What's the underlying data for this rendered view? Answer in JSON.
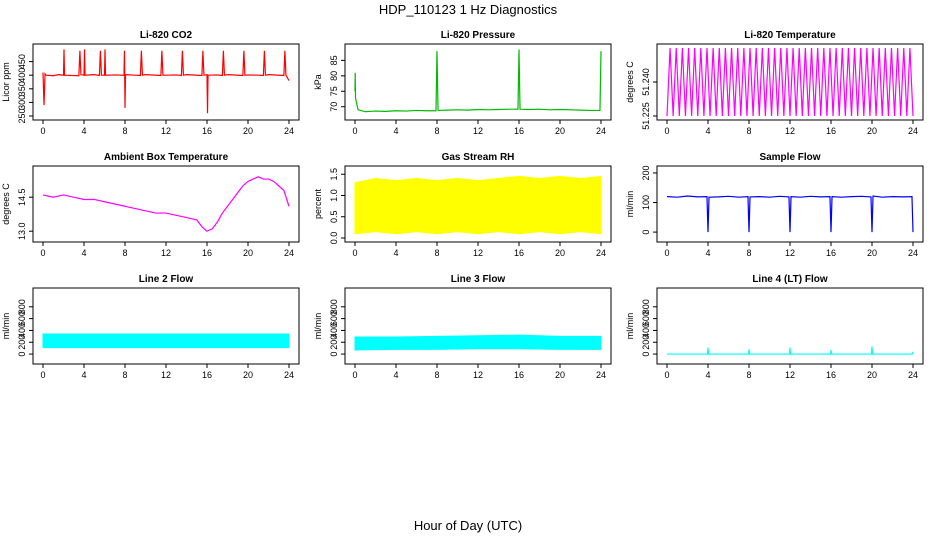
{
  "page": {
    "title": "HDP_110123  1 Hz Diagnostics",
    "x_caption": "Hour of Day (UTC)"
  },
  "chart_data": [
    {
      "type": "line",
      "title": "Li-820 CO2",
      "ylabel": "Licor ppm",
      "color": "#ff0000",
      "xlim": [
        0,
        24
      ],
      "ylim": [
        250,
        500
      ],
      "xticks": [
        "0",
        "4",
        "8",
        "12",
        "16",
        "20",
        "24"
      ],
      "yticks": [
        "250",
        "300",
        "350",
        "400",
        "450"
      ],
      "series": [
        {
          "x": [
            0,
            0.1,
            0.2,
            0.3,
            1.0,
            1.5,
            2.0,
            2.05,
            2.1,
            3.5,
            3.6,
            3.7,
            4.0,
            4.05,
            4.1,
            5.0,
            5.5,
            5.6,
            5.7,
            6.0,
            6.05,
            6.1,
            7.0,
            7.9,
            7.95,
            8.0,
            8.05,
            8.1,
            9.0,
            9.5,
            9.6,
            9.7,
            10.0,
            11.5,
            11.6,
            11.7,
            12.0,
            13.0,
            13.5,
            13.6,
            13.7,
            14.0,
            15.5,
            15.6,
            15.7,
            16.0,
            16.05,
            16.1,
            17.0,
            17.5,
            17.6,
            17.7,
            18.0,
            19.5,
            19.6,
            19.7,
            20.0,
            21.0,
            21.5,
            21.6,
            21.7,
            22.0,
            23.5,
            23.6,
            23.7,
            24.0
          ],
          "y": [
            410,
            290,
            405,
            400,
            398,
            402,
            400,
            495,
            400,
            398,
            490,
            402,
            400,
            495,
            400,
            402,
            399,
            490,
            400,
            400,
            495,
            400,
            401,
            400,
            490,
            280,
            400,
            402,
            400,
            399,
            490,
            400,
            402,
            399,
            490,
            400,
            400,
            401,
            399,
            490,
            400,
            402,
            399,
            490,
            400,
            402,
            260,
            400,
            401,
            399,
            490,
            400,
            402,
            399,
            490,
            400,
            401,
            400,
            399,
            490,
            400,
            402,
            399,
            490,
            400,
            380
          ]
        }
      ]
    },
    {
      "type": "line",
      "title": "Li-820 Pressure",
      "ylabel": "kPa",
      "color": "#00bb00",
      "xlim": [
        0,
        24
      ],
      "ylim": [
        67,
        89
      ],
      "xticks": [
        "0",
        "4",
        "8",
        "12",
        "16",
        "20",
        "24"
      ],
      "yticks": [
        "70",
        "75",
        "80",
        "85"
      ],
      "series": [
        {
          "x": [
            0,
            0.02,
            0.05,
            0.1,
            0.3,
            1,
            2,
            3,
            4,
            5,
            6,
            7,
            7.9,
            8.0,
            8.1,
            9,
            10,
            11,
            12,
            13,
            14,
            15,
            15.9,
            16.0,
            16.1,
            17,
            18,
            19,
            20,
            21,
            22,
            23,
            23.9,
            24.0
          ],
          "y": [
            75,
            81,
            73,
            72,
            69,
            68.4,
            68.6,
            68.5,
            68.7,
            68.6,
            68.8,
            68.7,
            68.7,
            88,
            68.8,
            68.9,
            69,
            68.9,
            69.1,
            69,
            69.1,
            69.2,
            69.2,
            88.5,
            69.2,
            69.1,
            69.2,
            69,
            69.1,
            69,
            68.9,
            68.8,
            68.8,
            88
          ]
        }
      ]
    },
    {
      "type": "line",
      "title": "Li-820 Temperature",
      "ylabel": "degrees C",
      "color": "#ff00ff",
      "xlim": [
        0,
        24
      ],
      "ylim": [
        51.225,
        51.255
      ],
      "xticks": [
        "0",
        "4",
        "8",
        "12",
        "16",
        "20",
        "24"
      ],
      "yticks": [
        "51.225",
        "51.240"
      ],
      "series": [
        {
          "x": [
            0,
            0.3,
            0.6,
            0.9,
            1.2,
            1.5,
            1.8,
            2.1,
            2.4,
            2.7,
            3.0,
            3.3,
            3.6,
            3.9,
            4.2,
            4.5,
            4.8,
            5.1,
            5.4,
            5.7,
            6.0,
            6.3,
            6.6,
            6.9,
            7.2,
            7.5,
            7.8,
            8.1,
            8.4,
            8.7,
            9.0,
            9.3,
            9.6,
            9.9,
            10.2,
            10.5,
            10.8,
            11.1,
            11.4,
            11.7,
            12.0,
            12.3,
            12.6,
            12.9,
            13.2,
            13.5,
            13.8,
            14.1,
            14.4,
            14.7,
            15.0,
            15.3,
            15.6,
            15.9,
            16.2,
            16.5,
            16.8,
            17.1,
            17.4,
            17.7,
            18.0,
            18.3,
            18.6,
            18.9,
            19.2,
            19.5,
            19.8,
            20.1,
            20.4,
            20.7,
            21.0,
            21.3,
            21.6,
            21.9,
            22.2,
            22.5,
            22.8,
            23.1,
            23.4,
            23.7,
            24.0
          ],
          "y": [
            51.225,
            51.255,
            51.225,
            51.255,
            51.225,
            51.255,
            51.225,
            51.255,
            51.225,
            51.255,
            51.225,
            51.255,
            51.225,
            51.255,
            51.225,
            51.255,
            51.225,
            51.255,
            51.225,
            51.255,
            51.225,
            51.255,
            51.225,
            51.255,
            51.225,
            51.255,
            51.225,
            51.255,
            51.225,
            51.255,
            51.225,
            51.255,
            51.225,
            51.255,
            51.225,
            51.255,
            51.225,
            51.255,
            51.225,
            51.255,
            51.225,
            51.255,
            51.225,
            51.255,
            51.225,
            51.255,
            51.225,
            51.255,
            51.225,
            51.255,
            51.225,
            51.255,
            51.225,
            51.255,
            51.225,
            51.255,
            51.225,
            51.255,
            51.225,
            51.255,
            51.225,
            51.255,
            51.225,
            51.255,
            51.225,
            51.255,
            51.225,
            51.255,
            51.225,
            51.255,
            51.225,
            51.255,
            51.225,
            51.255,
            51.225,
            51.255,
            51.225,
            51.255,
            51.225,
            51.255,
            51.225
          ]
        }
      ]
    },
    {
      "type": "line",
      "title": "Ambient Box Temperature",
      "ylabel": "degrees C",
      "color": "#ff00ff",
      "xlim": [
        0,
        24
      ],
      "ylim": [
        12.7,
        15.7
      ],
      "xticks": [
        "0",
        "4",
        "8",
        "12",
        "16",
        "20",
        "24"
      ],
      "yticks": [
        "13.0",
        "14.5"
      ],
      "series": [
        {
          "x": [
            0,
            1,
            2,
            3,
            4,
            5,
            6,
            7,
            8,
            9,
            10,
            11,
            12,
            13,
            14,
            15,
            15.5,
            16,
            16.5,
            17,
            17.5,
            18,
            18.5,
            19,
            19.5,
            20,
            20.5,
            21,
            21.5,
            22,
            22.5,
            23,
            23.5,
            24
          ],
          "y": [
            14.6,
            14.5,
            14.6,
            14.5,
            14.4,
            14.4,
            14.3,
            14.2,
            14.1,
            14.0,
            13.9,
            13.8,
            13.8,
            13.7,
            13.6,
            13.5,
            13.2,
            13.0,
            13.1,
            13.4,
            13.8,
            14.1,
            14.4,
            14.7,
            15.0,
            15.2,
            15.3,
            15.4,
            15.3,
            15.3,
            15.2,
            15.0,
            14.8,
            14.1
          ]
        }
      ]
    },
    {
      "type": "area",
      "title": "Gas Stream RH",
      "ylabel": "percent",
      "color": "#ffff00",
      "xlim": [
        0,
        24
      ],
      "ylim": [
        0,
        1.6
      ],
      "xticks": [
        "0",
        "4",
        "8",
        "12",
        "16",
        "20",
        "24"
      ],
      "yticks": [
        "0.0",
        "0.5",
        "1.0",
        "1.5"
      ],
      "series": [
        {
          "name": "upper",
          "x": [
            0,
            2,
            4,
            6,
            8,
            10,
            12,
            14,
            16,
            18,
            20,
            22,
            24
          ],
          "y": [
            1.3,
            1.4,
            1.35,
            1.4,
            1.35,
            1.4,
            1.35,
            1.4,
            1.45,
            1.4,
            1.45,
            1.4,
            1.45
          ]
        },
        {
          "name": "lower",
          "x": [
            0,
            2,
            4,
            6,
            8,
            10,
            12,
            14,
            16,
            18,
            20,
            22,
            24
          ],
          "y": [
            0.1,
            0.15,
            0.1,
            0.15,
            0.1,
            0.15,
            0.1,
            0.15,
            0.1,
            0.15,
            0.1,
            0.15,
            0.1
          ]
        }
      ]
    },
    {
      "type": "line",
      "title": "Sample Flow",
      "ylabel": "ml/min",
      "color": "#0000ff",
      "xlim": [
        0,
        24
      ],
      "ylim": [
        -20,
        210
      ],
      "xticks": [
        "0",
        "4",
        "8",
        "12",
        "16",
        "20",
        "24"
      ],
      "yticks": [
        "0",
        "100",
        "200"
      ],
      "series": [
        {
          "x": [
            0,
            1,
            2,
            3,
            3.9,
            4.0,
            4.1,
            5,
            6,
            7,
            7.9,
            8.0,
            8.1,
            9,
            10,
            11,
            11.9,
            12.0,
            12.1,
            13,
            14,
            15,
            15.9,
            16.0,
            16.1,
            17,
            18,
            19,
            19.9,
            20.0,
            20.1,
            21,
            22,
            23,
            23.9,
            24.0
          ],
          "y": [
            120,
            118,
            122,
            119,
            120,
            0,
            118,
            119,
            121,
            118,
            120,
            0,
            119,
            120,
            118,
            121,
            119,
            0,
            120,
            118,
            121,
            119,
            120,
            0,
            120,
            118,
            120,
            121,
            119,
            0,
            122,
            118,
            120,
            119,
            120,
            0
          ]
        }
      ]
    },
    {
      "type": "area",
      "title": "Line 2 Flow",
      "ylabel": "ml/min",
      "color": "#00ffff",
      "xlim": [
        0,
        24
      ],
      "ylim": [
        -100,
        1050
      ],
      "xticks": [
        "0",
        "4",
        "8",
        "12",
        "16",
        "20",
        "24"
      ],
      "yticks": [
        "0",
        "200",
        "400",
        "600",
        "800"
      ],
      "series": [
        {
          "name": "upper",
          "x": [
            0,
            4,
            8,
            12,
            16,
            20,
            24
          ],
          "y": [
            340,
            340,
            340,
            340,
            340,
            340,
            340
          ]
        },
        {
          "name": "lower",
          "x": [
            0,
            4,
            8,
            12,
            16,
            20,
            24
          ],
          "y": [
            110,
            110,
            110,
            110,
            110,
            110,
            110
          ]
        }
      ]
    },
    {
      "type": "area",
      "title": "Line 3 Flow",
      "ylabel": "ml/min",
      "color": "#00ffff",
      "xlim": [
        0,
        24
      ],
      "ylim": [
        -100,
        1050
      ],
      "xticks": [
        "0",
        "4",
        "8",
        "12",
        "16",
        "20",
        "24"
      ],
      "yticks": [
        "0",
        "200",
        "400",
        "600",
        "800"
      ],
      "series": [
        {
          "name": "upper",
          "x": [
            0,
            4,
            8,
            12,
            16,
            20,
            24
          ],
          "y": [
            290,
            290,
            300,
            310,
            320,
            300,
            300
          ]
        },
        {
          "name": "lower",
          "x": [
            0,
            4,
            8,
            12,
            16,
            20,
            24
          ],
          "y": [
            70,
            80,
            80,
            90,
            90,
            80,
            80
          ]
        }
      ]
    },
    {
      "type": "line",
      "title": "Line 4 (LT) Flow",
      "ylabel": "ml/min",
      "color": "#00ffff",
      "xlim": [
        0,
        24
      ],
      "ylim": [
        -100,
        1050
      ],
      "xticks": [
        "0",
        "4",
        "8",
        "12",
        "16",
        "20",
        "24"
      ],
      "yticks": [
        "0",
        "200",
        "400",
        "600",
        "800"
      ],
      "series": [
        {
          "x": [
            0,
            3.95,
            4.0,
            4.05,
            7.95,
            8.0,
            8.05,
            11.95,
            12.0,
            12.05,
            15.95,
            16.0,
            16.05,
            19.95,
            20.0,
            20.05,
            23.95,
            24.0
          ],
          "y": [
            0,
            0,
            110,
            0,
            0,
            80,
            0,
            0,
            110,
            0,
            0,
            70,
            0,
            0,
            130,
            0,
            0,
            40
          ]
        }
      ]
    }
  ]
}
